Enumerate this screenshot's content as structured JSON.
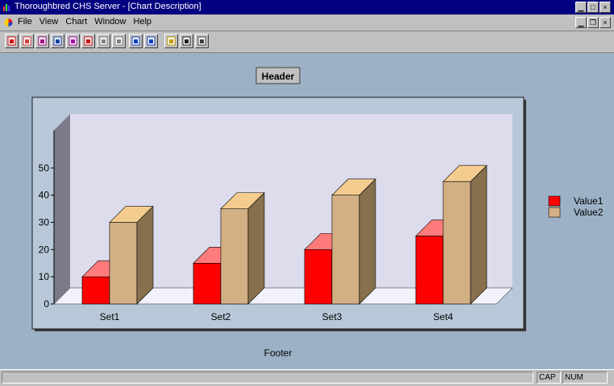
{
  "window": {
    "title": "Thoroughbred CHS Server - [Chart Description]",
    "minimize_glyph": "▁",
    "maximize_glyph": "□",
    "close_glyph": "×",
    "doc_minimize_glyph": "▁",
    "doc_restore_glyph": "❐",
    "doc_close_glyph": "×"
  },
  "menu": {
    "items": [
      "File",
      "View",
      "Chart",
      "Window",
      "Help"
    ]
  },
  "toolbar": {
    "buttons": [
      {
        "name": "pie-chart-icon",
        "color": "#d01010"
      },
      {
        "name": "bar-chart-icon",
        "color": "#d04040"
      },
      {
        "name": "column-chart-icon",
        "color": "#a01080"
      },
      {
        "name": "line-chart-icon",
        "color": "#1040a0"
      },
      {
        "name": "area-chart-icon",
        "color": "#a010a0"
      },
      {
        "name": "hilo-chart-icon",
        "color": "#d01010"
      },
      {
        "name": "stacked-bar-icon",
        "color": "#808080"
      },
      {
        "name": "gantt-chart-icon",
        "color": "#808080"
      },
      {
        "name": "chart-data-icon",
        "color": "#1040c0"
      },
      {
        "name": "chart-options-icon",
        "color": "#1040c0"
      },
      {
        "name": "open-folder-icon",
        "color": "#c0a000"
      },
      {
        "name": "save-icon",
        "color": "#202020"
      },
      {
        "name": "print-icon",
        "color": "#404040"
      }
    ]
  },
  "chart_data": {
    "type": "bar",
    "title": "Header",
    "footer": "Footer",
    "categories": [
      "Set1",
      "Set2",
      "Set3",
      "Set4"
    ],
    "series": [
      {
        "name": "Value1",
        "values": [
          10,
          15,
          20,
          25
        ],
        "color": "#ff0000",
        "top_color": "#ff7b7b",
        "side_color": "#b40000"
      },
      {
        "name": "Value2",
        "values": [
          30,
          35,
          40,
          45
        ],
        "color": "#d2b084",
        "top_color": "#f5cc90",
        "side_color": "#86704e"
      }
    ],
    "yticks": [
      0,
      10,
      20,
      30,
      40,
      50
    ],
    "ylim": [
      0,
      55
    ],
    "legend_position": "right",
    "grid": false
  },
  "status": {
    "message": "",
    "cap": "CAP",
    "num": "NUM"
  }
}
